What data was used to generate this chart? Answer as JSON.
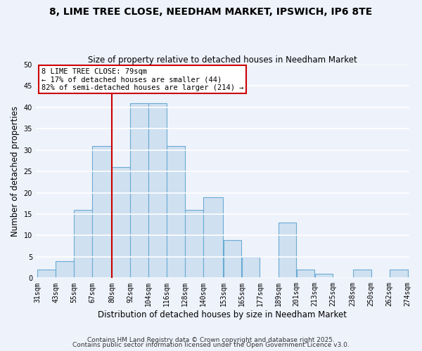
{
  "title": "8, LIME TREE CLOSE, NEEDHAM MARKET, IPSWICH, IP6 8TE",
  "subtitle": "Size of property relative to detached houses in Needham Market",
  "xlabel": "Distribution of detached houses by size in Needham Market",
  "ylabel": "Number of detached properties",
  "bin_edges": [
    31,
    43,
    55,
    67,
    80,
    92,
    104,
    116,
    128,
    140,
    153,
    165,
    177,
    189,
    201,
    213,
    225,
    238,
    250,
    262,
    274
  ],
  "bar_heights": [
    2,
    4,
    16,
    31,
    26,
    41,
    41,
    31,
    16,
    19,
    9,
    5,
    0,
    13,
    2,
    1,
    0,
    2,
    0,
    2
  ],
  "bar_color": "#cfe0f0",
  "bar_edgecolor": "#6aaad4",
  "vline_x": 80,
  "vline_color": "#cc0000",
  "ylim": [
    0,
    50
  ],
  "yticks": [
    0,
    5,
    10,
    15,
    20,
    25,
    30,
    35,
    40,
    45,
    50
  ],
  "annotation_title": "8 LIME TREE CLOSE: 79sqm",
  "annotation_line1": "← 17% of detached houses are smaller (44)",
  "annotation_line2": "82% of semi-detached houses are larger (214) →",
  "footnote1": "Contains HM Land Registry data © Crown copyright and database right 2025.",
  "footnote2": "Contains public sector information licensed under the Open Government Licence v3.0.",
  "background_color": "#eef2fb",
  "grid_color": "#ffffff",
  "title_fontsize": 10,
  "subtitle_fontsize": 8.5,
  "tick_label_fontsize": 7,
  "axis_label_fontsize": 8.5,
  "footnote_fontsize": 6.5
}
